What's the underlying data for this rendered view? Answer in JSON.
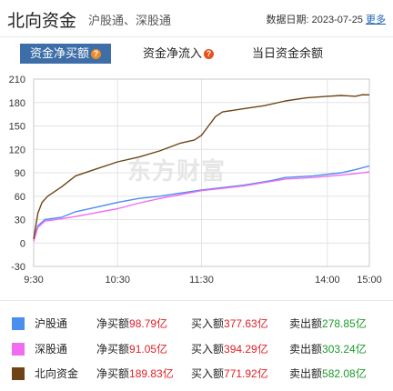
{
  "header": {
    "title": "北向资金",
    "subtitle": "沪股通、深股通",
    "date_label": "数据日期:",
    "date": "2023-07-25",
    "more": "更多"
  },
  "tabs": [
    {
      "label": "资金净买额",
      "active": true,
      "help_icon": "question-badge-icon"
    },
    {
      "label": "资金净流入",
      "active": false,
      "help_icon": "question-badge-icon"
    },
    {
      "label": "当日资金余额",
      "active": false
    }
  ],
  "watermark": "东方财富",
  "colors": {
    "hgt": "#4b8ef0",
    "sgt": "#f06cf0",
    "total": "#6e4416",
    "tab_active": "#3d6ea8",
    "buy_red": "#e0202a",
    "sell_green": "#1a9a2a"
  },
  "chart_data": {
    "type": "line",
    "x_ticks": [
      "9:30",
      "10:30",
      "11:30",
      "14:00",
      "15:00"
    ],
    "y_ticks": [
      210,
      180,
      150,
      120,
      90,
      60,
      30,
      0,
      -30
    ],
    "ylim": [
      -30,
      210
    ],
    "grid": true,
    "series": [
      {
        "name": "沪股通",
        "color": "#4b8ef0",
        "points": [
          [
            0,
            5
          ],
          [
            3,
            22
          ],
          [
            8,
            30
          ],
          [
            20,
            33
          ],
          [
            30,
            40
          ],
          [
            45,
            46
          ],
          [
            60,
            52
          ],
          [
            75,
            57
          ],
          [
            90,
            60
          ],
          [
            105,
            64
          ],
          [
            120,
            68
          ],
          [
            150,
            74
          ],
          [
            170,
            80
          ],
          [
            180,
            84
          ],
          [
            200,
            86
          ],
          [
            220,
            90
          ],
          [
            230,
            94
          ],
          [
            240,
            98.79
          ]
        ]
      },
      {
        "name": "深股通",
        "color": "#f06cf0",
        "points": [
          [
            0,
            2
          ],
          [
            3,
            20
          ],
          [
            8,
            28
          ],
          [
            20,
            31
          ],
          [
            30,
            34
          ],
          [
            45,
            39
          ],
          [
            60,
            44
          ],
          [
            75,
            51
          ],
          [
            90,
            57
          ],
          [
            105,
            62
          ],
          [
            120,
            67
          ],
          [
            150,
            73
          ],
          [
            170,
            79
          ],
          [
            180,
            82
          ],
          [
            200,
            84
          ],
          [
            220,
            87
          ],
          [
            230,
            89
          ],
          [
            240,
            91.05
          ]
        ]
      },
      {
        "name": "北向资金",
        "color": "#6e4416",
        "points": [
          [
            0,
            5
          ],
          [
            3,
            38
          ],
          [
            6,
            52
          ],
          [
            10,
            60
          ],
          [
            20,
            72
          ],
          [
            30,
            86
          ],
          [
            45,
            95
          ],
          [
            60,
            104
          ],
          [
            75,
            110
          ],
          [
            90,
            118
          ],
          [
            105,
            128
          ],
          [
            115,
            132
          ],
          [
            120,
            138
          ],
          [
            125,
            150
          ],
          [
            130,
            162
          ],
          [
            135,
            168
          ],
          [
            150,
            172
          ],
          [
            165,
            176
          ],
          [
            180,
            182
          ],
          [
            195,
            186
          ],
          [
            210,
            188
          ],
          [
            220,
            189
          ],
          [
            230,
            188
          ],
          [
            235,
            190
          ],
          [
            240,
            189.83
          ]
        ]
      }
    ]
  },
  "legend": [
    {
      "name": "沪股通",
      "color": "#4b8ef0",
      "net_label": "净买额",
      "net_value": "98.79亿",
      "buy_label": "买入额",
      "buy_value": "377.63亿",
      "sell_label": "卖出额",
      "sell_value": "278.85亿"
    },
    {
      "name": "深股通",
      "color": "#f06cf0",
      "net_label": "净买额",
      "net_value": "91.05亿",
      "buy_label": "买入额",
      "buy_value": "394.29亿",
      "sell_label": "卖出额",
      "sell_value": "303.24亿"
    },
    {
      "name": "北向资金",
      "color": "#6e4416",
      "net_label": "净买额",
      "net_value": "189.83亿",
      "buy_label": "买入额",
      "buy_value": "771.92亿",
      "sell_label": "卖出额",
      "sell_value": "582.08亿"
    }
  ]
}
